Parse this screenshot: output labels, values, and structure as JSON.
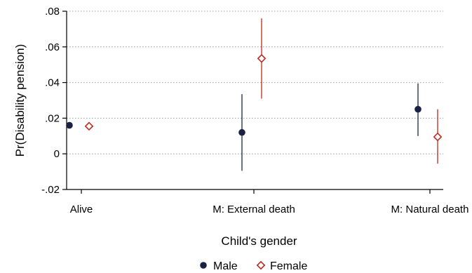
{
  "chart_data": {
    "type": "scatter",
    "title": "",
    "xlabel": "Child's gender",
    "ylabel": "Pr(Disability pension)",
    "categories": [
      "Alive",
      "M: External death",
      "M: Natural death"
    ],
    "ylim": [
      -0.02,
      0.08
    ],
    "yticks": [
      -0.02,
      0,
      0.02,
      0.04,
      0.06,
      0.08
    ],
    "ytick_labels": [
      "-.02",
      "0",
      ".02",
      ".04",
      ".06",
      ".08"
    ],
    "grid": true,
    "legend_position": "bottom",
    "series": [
      {
        "name": "Male",
        "marker": "filled-circle",
        "color": "#1a2244",
        "values": [
          0.016,
          0.012,
          0.025
        ],
        "ci_low": [
          null,
          -0.0095,
          0.01
        ],
        "ci_high": [
          null,
          0.0335,
          0.0395
        ]
      },
      {
        "name": "Female",
        "marker": "hollow-diamond",
        "color": "#c0281c",
        "values": [
          0.0155,
          0.0535,
          0.0095
        ],
        "ci_low": [
          null,
          0.031,
          -0.0055
        ],
        "ci_high": [
          null,
          0.076,
          0.025
        ]
      }
    ]
  }
}
